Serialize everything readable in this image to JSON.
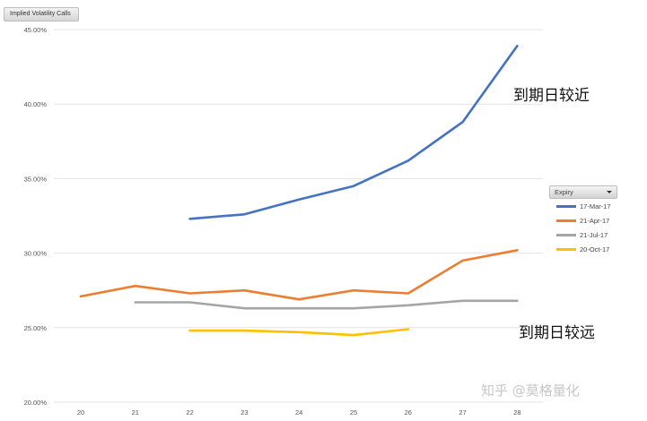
{
  "chart_data": {
    "type": "line",
    "title": "Implied Volatility Calls",
    "xlabel": "",
    "ylabel": "",
    "x": [
      20,
      21,
      22,
      23,
      24,
      25,
      26,
      27,
      28
    ],
    "ylim": [
      0.2,
      0.45
    ],
    "yticks": [
      0.2,
      0.25,
      0.3,
      0.35,
      0.4,
      0.45
    ],
    "ytick_labels": [
      "20.00%",
      "25.00%",
      "30.00%",
      "35.00%",
      "40.00%",
      "45.00%"
    ],
    "grid": "horizontal",
    "legend_title": "Expiry",
    "legend_position": "right",
    "series": [
      {
        "name": "17-Mar-17",
        "color": "#4472c4",
        "values": [
          null,
          null,
          0.323,
          0.326,
          0.336,
          0.345,
          0.362,
          0.388,
          0.439
        ]
      },
      {
        "name": "21-Apr-17",
        "color": "#ed7d31",
        "values": [
          0.271,
          0.278,
          0.273,
          0.275,
          0.269,
          0.275,
          0.273,
          0.295,
          0.302
        ]
      },
      {
        "name": "21-Jul-17",
        "color": "#a5a5a5",
        "values": [
          null,
          0.267,
          0.267,
          0.263,
          0.263,
          0.263,
          0.265,
          0.268,
          0.268
        ]
      },
      {
        "name": "20-Oct-17",
        "color": "#ffc000",
        "values": [
          null,
          null,
          0.248,
          0.248,
          0.247,
          0.245,
          0.249,
          null,
          null
        ]
      }
    ],
    "annotations": [
      {
        "id": "near",
        "text": "到期日较近"
      },
      {
        "id": "far",
        "text": "到期日较远"
      }
    ]
  },
  "watermark": {
    "text": "知乎 @莫格量化"
  }
}
